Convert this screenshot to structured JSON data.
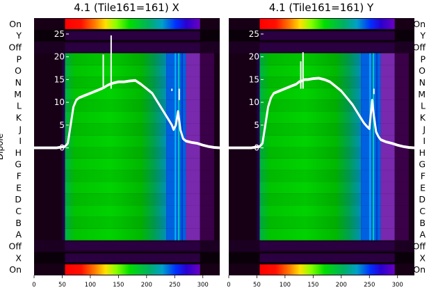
{
  "chart_data": [
    {
      "type": "heatmap",
      "title": "4.1 (Tile161=161) X",
      "ylabel": "Dipole",
      "row_labels": [
        "On",
        "X",
        "Off",
        "A",
        "B",
        "C",
        "D",
        "E",
        "F",
        "G",
        "H",
        "I",
        "J",
        "K",
        "L",
        "M",
        "N",
        "O",
        "P",
        "Off",
        "Y",
        "On"
      ],
      "x_ticks": [
        0,
        50,
        100,
        150,
        200,
        250,
        300
      ],
      "xlim": [
        0,
        330
      ],
      "overlay_yticks": [
        0,
        5,
        10,
        15,
        20,
        25
      ],
      "overlay_ylim": [
        -28,
        28.5
      ],
      "bandpass_curve": {
        "x": [
          0,
          40,
          55,
          60,
          65,
          70,
          75,
          80,
          90,
          100,
          110,
          120,
          125,
          130,
          135,
          140,
          150,
          160,
          170,
          180,
          190,
          200,
          210,
          220,
          230,
          240,
          245,
          248,
          252,
          256,
          260,
          265,
          270,
          280,
          290,
          300,
          310,
          320,
          330
        ],
        "y": [
          0,
          0,
          0.3,
          1,
          5,
          9,
          10.5,
          11,
          11.5,
          12,
          12.5,
          13,
          13.3,
          13.7,
          14,
          14.2,
          14.5,
          14.5,
          14.7,
          14.8,
          14,
          13,
          12,
          10,
          8,
          6,
          5,
          4,
          5,
          8,
          4,
          2,
          1.5,
          1.2,
          1.0,
          0.6,
          0.3,
          0.1,
          0
        ]
      },
      "spikes": [
        {
          "x": 123,
          "y": 20.5
        },
        {
          "x": 137,
          "y": 24.7
        },
        {
          "x": 245,
          "y": 12.5
        },
        {
          "x": 258,
          "y": 10.5
        }
      ]
    },
    {
      "type": "heatmap",
      "title": "4.1 (Tile161=161) Y",
      "ylabel": "",
      "row_labels": [
        "On",
        "X",
        "Off",
        "A",
        "B",
        "C",
        "D",
        "E",
        "F",
        "G",
        "H",
        "I",
        "J",
        "K",
        "L",
        "M",
        "N",
        "O",
        "P",
        "Off",
        "Y",
        "On"
      ],
      "x_ticks": [
        0,
        50,
        100,
        150,
        200,
        250,
        300
      ],
      "xlim": [
        0,
        330
      ],
      "overlay_yticks": [
        0,
        5,
        10,
        15,
        20,
        25
      ],
      "overlay_ylim": [
        -28,
        28.5
      ],
      "bandpass_curve": {
        "x": [
          0,
          40,
          55,
          60,
          65,
          70,
          75,
          80,
          90,
          100,
          110,
          120,
          125,
          130,
          135,
          140,
          150,
          160,
          170,
          180,
          190,
          200,
          210,
          220,
          230,
          240,
          245,
          250,
          255,
          258,
          262,
          266,
          270,
          280,
          290,
          300,
          310,
          320,
          330
        ],
        "y": [
          0,
          0,
          0.3,
          1,
          5,
          9,
          11,
          12,
          12.5,
          13,
          13.5,
          14,
          14.5,
          14.7,
          15,
          15,
          15.2,
          15.3,
          15,
          14.5,
          13.5,
          12.5,
          11,
          9.5,
          7.5,
          5.5,
          4.8,
          4.2,
          10.5,
          7,
          3.5,
          2.5,
          1.8,
          1.3,
          1.0,
          0.6,
          0.3,
          0.1,
          0
        ]
      },
      "spikes": [
        {
          "x": 128,
          "y": 19
        },
        {
          "x": 132,
          "y": 21
        },
        {
          "x": 258,
          "y": 11.8
        }
      ]
    }
  ]
}
